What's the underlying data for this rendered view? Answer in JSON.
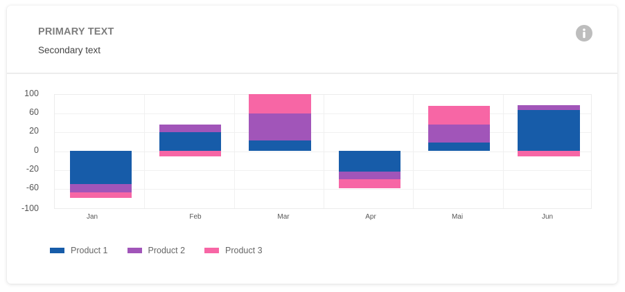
{
  "card": {
    "title": "PRIMARY TEXT",
    "subtitle": "Secondary text",
    "info_icon": "info-icon"
  },
  "colors": {
    "product1": "#175ca9",
    "product2": "#a155b9",
    "product3": "#f766a5"
  },
  "legend": [
    {
      "label": "Product 1",
      "color": "#175ca9"
    },
    {
      "label": "Product 2",
      "color": "#a155b9"
    },
    {
      "label": "Product 3",
      "color": "#f766a5"
    }
  ],
  "chart_data": {
    "type": "bar",
    "stacked": true,
    "title": "",
    "xlabel": "",
    "ylabel": "",
    "categories": [
      "Jan",
      "Feb",
      "Mar",
      "Apr",
      "Mai",
      "Jun"
    ],
    "series": [
      {
        "name": "Product 1",
        "color": "#175ca9",
        "values": [
          -58,
          32,
          18,
          -36,
          14,
          71
        ]
      },
      {
        "name": "Product 2",
        "color": "#a155b9",
        "values": [
          -14,
          14,
          47,
          -13,
          32,
          8
        ]
      },
      {
        "name": "Product 3",
        "color": "#f766a5",
        "values": [
          -10,
          -10,
          34,
          -16,
          32,
          -10
        ]
      }
    ],
    "y_tick_labels": [
      "100",
      "60",
      "20",
      "0",
      "-20",
      "-60",
      "-100"
    ],
    "ylim": [
      -100,
      100
    ],
    "grid": true,
    "legend_position": "bottom-left"
  }
}
